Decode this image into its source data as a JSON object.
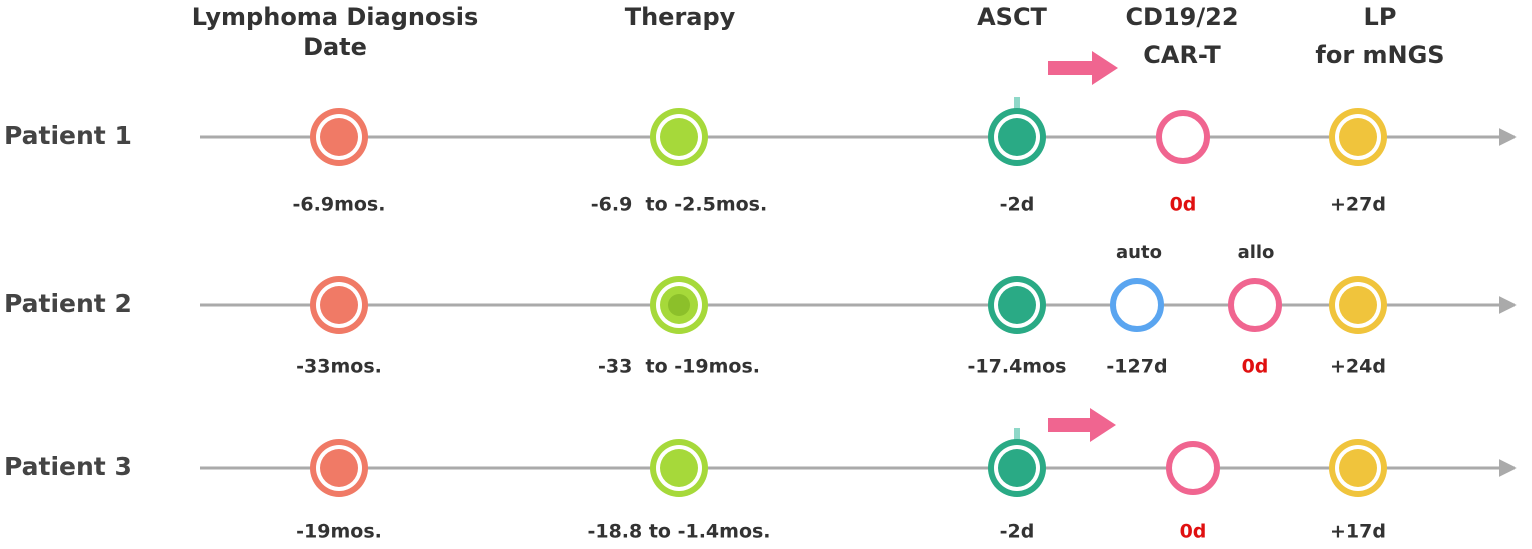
{
  "headers": [
    {
      "lines": [
        "Lymphoma Diagnosis",
        "Date"
      ]
    },
    {
      "lines": [
        "Therapy"
      ]
    },
    {
      "lines": [
        "ASCT"
      ]
    },
    {
      "lines": [
        "CD19/22",
        "CAR-T"
      ]
    },
    {
      "lines": [
        "LP",
        "for mNGS"
      ]
    }
  ],
  "patients": [
    {
      "label": "Patient 1",
      "times": [
        "-6.9mos.",
        "-6.9  to -2.5mos.",
        "-2d",
        "0d",
        "+27d"
      ]
    },
    {
      "label": "Patient 2",
      "car_t_labels": [
        "auto",
        "allo"
      ],
      "times": [
        "-33mos.",
        "-33  to -19mos.",
        "-17.4mos",
        "-127d",
        "0d",
        "+24d"
      ]
    },
    {
      "label": "Patient 3",
      "times": [
        "-19mos.",
        "-18.8 to -1.4mos.",
        "-2d",
        "0d",
        "+17d"
      ]
    }
  ]
}
